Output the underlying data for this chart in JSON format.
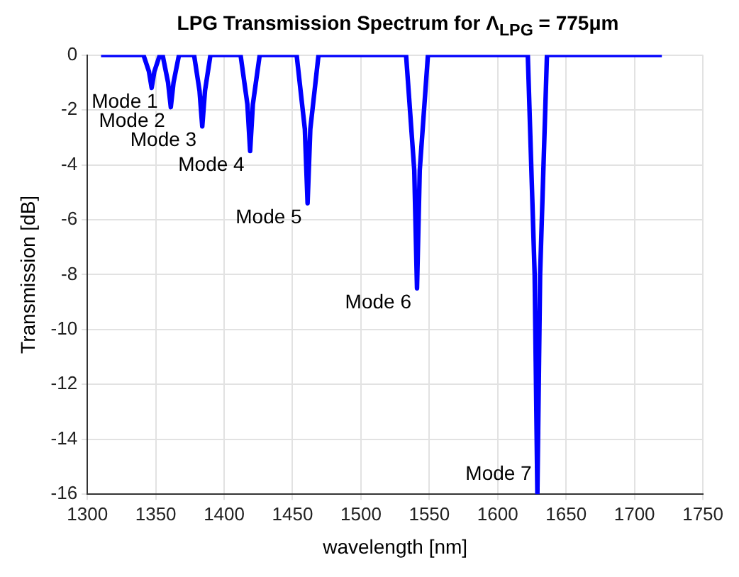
{
  "chart_data": {
    "type": "line",
    "title": "LPG Transmission Spectrum for Λ$_{LPG}$ = 775μm",
    "xlabel": "wavelength [nm]",
    "ylabel": "Transmission [dB]",
    "x": [
      1310,
      1341,
      1345,
      1347,
      1349,
      1353,
      1355,
      1359,
      1361,
      1363,
      1367,
      1378,
      1382,
      1384,
      1386,
      1390,
      1412,
      1417,
      1419,
      1421,
      1426,
      1453,
      1459,
      1461,
      1463,
      1469,
      1533,
      1539,
      1541,
      1543,
      1549,
      1622,
      1627,
      1629,
      1631,
      1636,
      1720
    ],
    "series": [
      {
        "color": "#0000ff",
        "values": [
          0,
          0,
          -0.6,
          -1.2,
          -0.6,
          0,
          0,
          -1,
          -1.9,
          -1,
          0,
          0,
          -1.3,
          -2.6,
          -1.3,
          0,
          0,
          -1.8,
          -3.5,
          -1.8,
          0,
          0,
          -2.7,
          -5.4,
          -2.7,
          0,
          0,
          -4.2,
          -8.5,
          -4.2,
          0,
          0,
          -8,
          -16,
          -8,
          0,
          0
        ]
      }
    ],
    "xlim": [
      1300,
      1750
    ],
    "xticks": [
      1300,
      1350,
      1400,
      1450,
      1500,
      1550,
      1600,
      1650,
      1700,
      1750
    ],
    "ylim": [
      -16,
      0
    ],
    "yticks": [
      -16,
      -14,
      -12,
      -10,
      -8,
      -6,
      -4,
      -2,
      0
    ],
    "grid": true,
    "legend": false,
    "marker": "none",
    "line_style": "solid",
    "annotations": [
      {
        "text": "Mode 1",
        "x": 1347,
        "y": -1.2
      },
      {
        "text": "Mode 2",
        "x": 1361,
        "y": -1.9
      },
      {
        "text": "Mode 3",
        "x": 1384,
        "y": -2.6
      },
      {
        "text": "Mode 4",
        "x": 1419,
        "y": -3.5
      },
      {
        "text": "Mode 5",
        "x": 1461,
        "y": -5.4
      },
      {
        "text": "Mode 6",
        "x": 1541,
        "y": -8.5
      },
      {
        "text": "Mode 7",
        "x": 1629,
        "y": -16
      }
    ]
  }
}
